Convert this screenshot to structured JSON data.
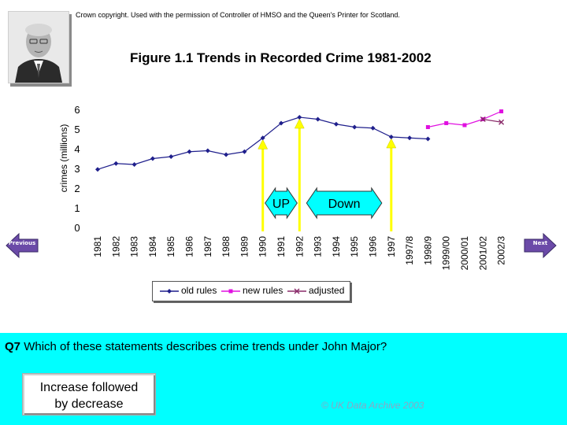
{
  "copyright": "Crown copyright. Used with the permission of Controller of HMSO and the Queen's Printer for Scotland.",
  "chart_data": {
    "type": "line",
    "title": "Figure 1.1 Trends in Recorded Crime 1981-2002",
    "ylabel": "crimes (millions)",
    "xlabel": "",
    "ylim": [
      0,
      6
    ],
    "yticks": [
      "0",
      "1",
      "2",
      "3",
      "4",
      "5",
      "6"
    ],
    "categories": [
      "1981",
      "1982",
      "1983",
      "1984",
      "1985",
      "1986",
      "1987",
      "1988",
      "1989",
      "1990",
      "1991",
      "1992",
      "1993",
      "1994",
      "1995",
      "1996",
      "1997",
      "1997/8",
      "1998/9",
      "1999/00",
      "2000/01",
      "2001/02",
      "2002/3"
    ],
    "series": [
      {
        "name": "old rules",
        "color": "#1f1f8c",
        "marker": "diamond",
        "values": [
          2.95,
          3.25,
          3.2,
          3.5,
          3.6,
          3.85,
          3.9,
          3.7,
          3.85,
          4.55,
          5.3,
          5.6,
          5.5,
          5.25,
          5.1,
          5.05,
          4.6,
          4.55,
          4.5,
          null,
          null,
          null,
          null
        ]
      },
      {
        "name": "new rules",
        "color": "#e010e0",
        "marker": "square",
        "values": [
          null,
          null,
          null,
          null,
          null,
          null,
          null,
          null,
          null,
          null,
          null,
          null,
          null,
          null,
          null,
          null,
          null,
          null,
          5.1,
          5.3,
          5.2,
          5.5,
          5.9
        ]
      },
      {
        "name": "adjusted",
        "color": "#8a2b6a",
        "marker": "x",
        "values": [
          null,
          null,
          null,
          null,
          null,
          null,
          null,
          null,
          null,
          null,
          null,
          null,
          null,
          null,
          null,
          null,
          null,
          null,
          null,
          null,
          null,
          5.5,
          5.35
        ]
      }
    ],
    "annotations": {
      "up_label": "UP",
      "down_label": "Down",
      "vertical_markers": [
        "1990",
        "1992",
        "1997"
      ]
    },
    "grid": false,
    "legend_position": "bottom"
  },
  "nav": {
    "previous": "Previous",
    "next": "Next"
  },
  "quiz": {
    "question_number": "Q7",
    "question_text": "Which of these statements describes crime trends under John Major?",
    "answer": "Increase followed by decrease",
    "answer_line1": "Increase followed",
    "answer_line2": "by decrease",
    "source": "© UK Data Archive 2003"
  },
  "colors": {
    "quiz_bg": "#00ffff",
    "marker_line": "#ffff00",
    "arrow_fill": "#00ffff"
  }
}
